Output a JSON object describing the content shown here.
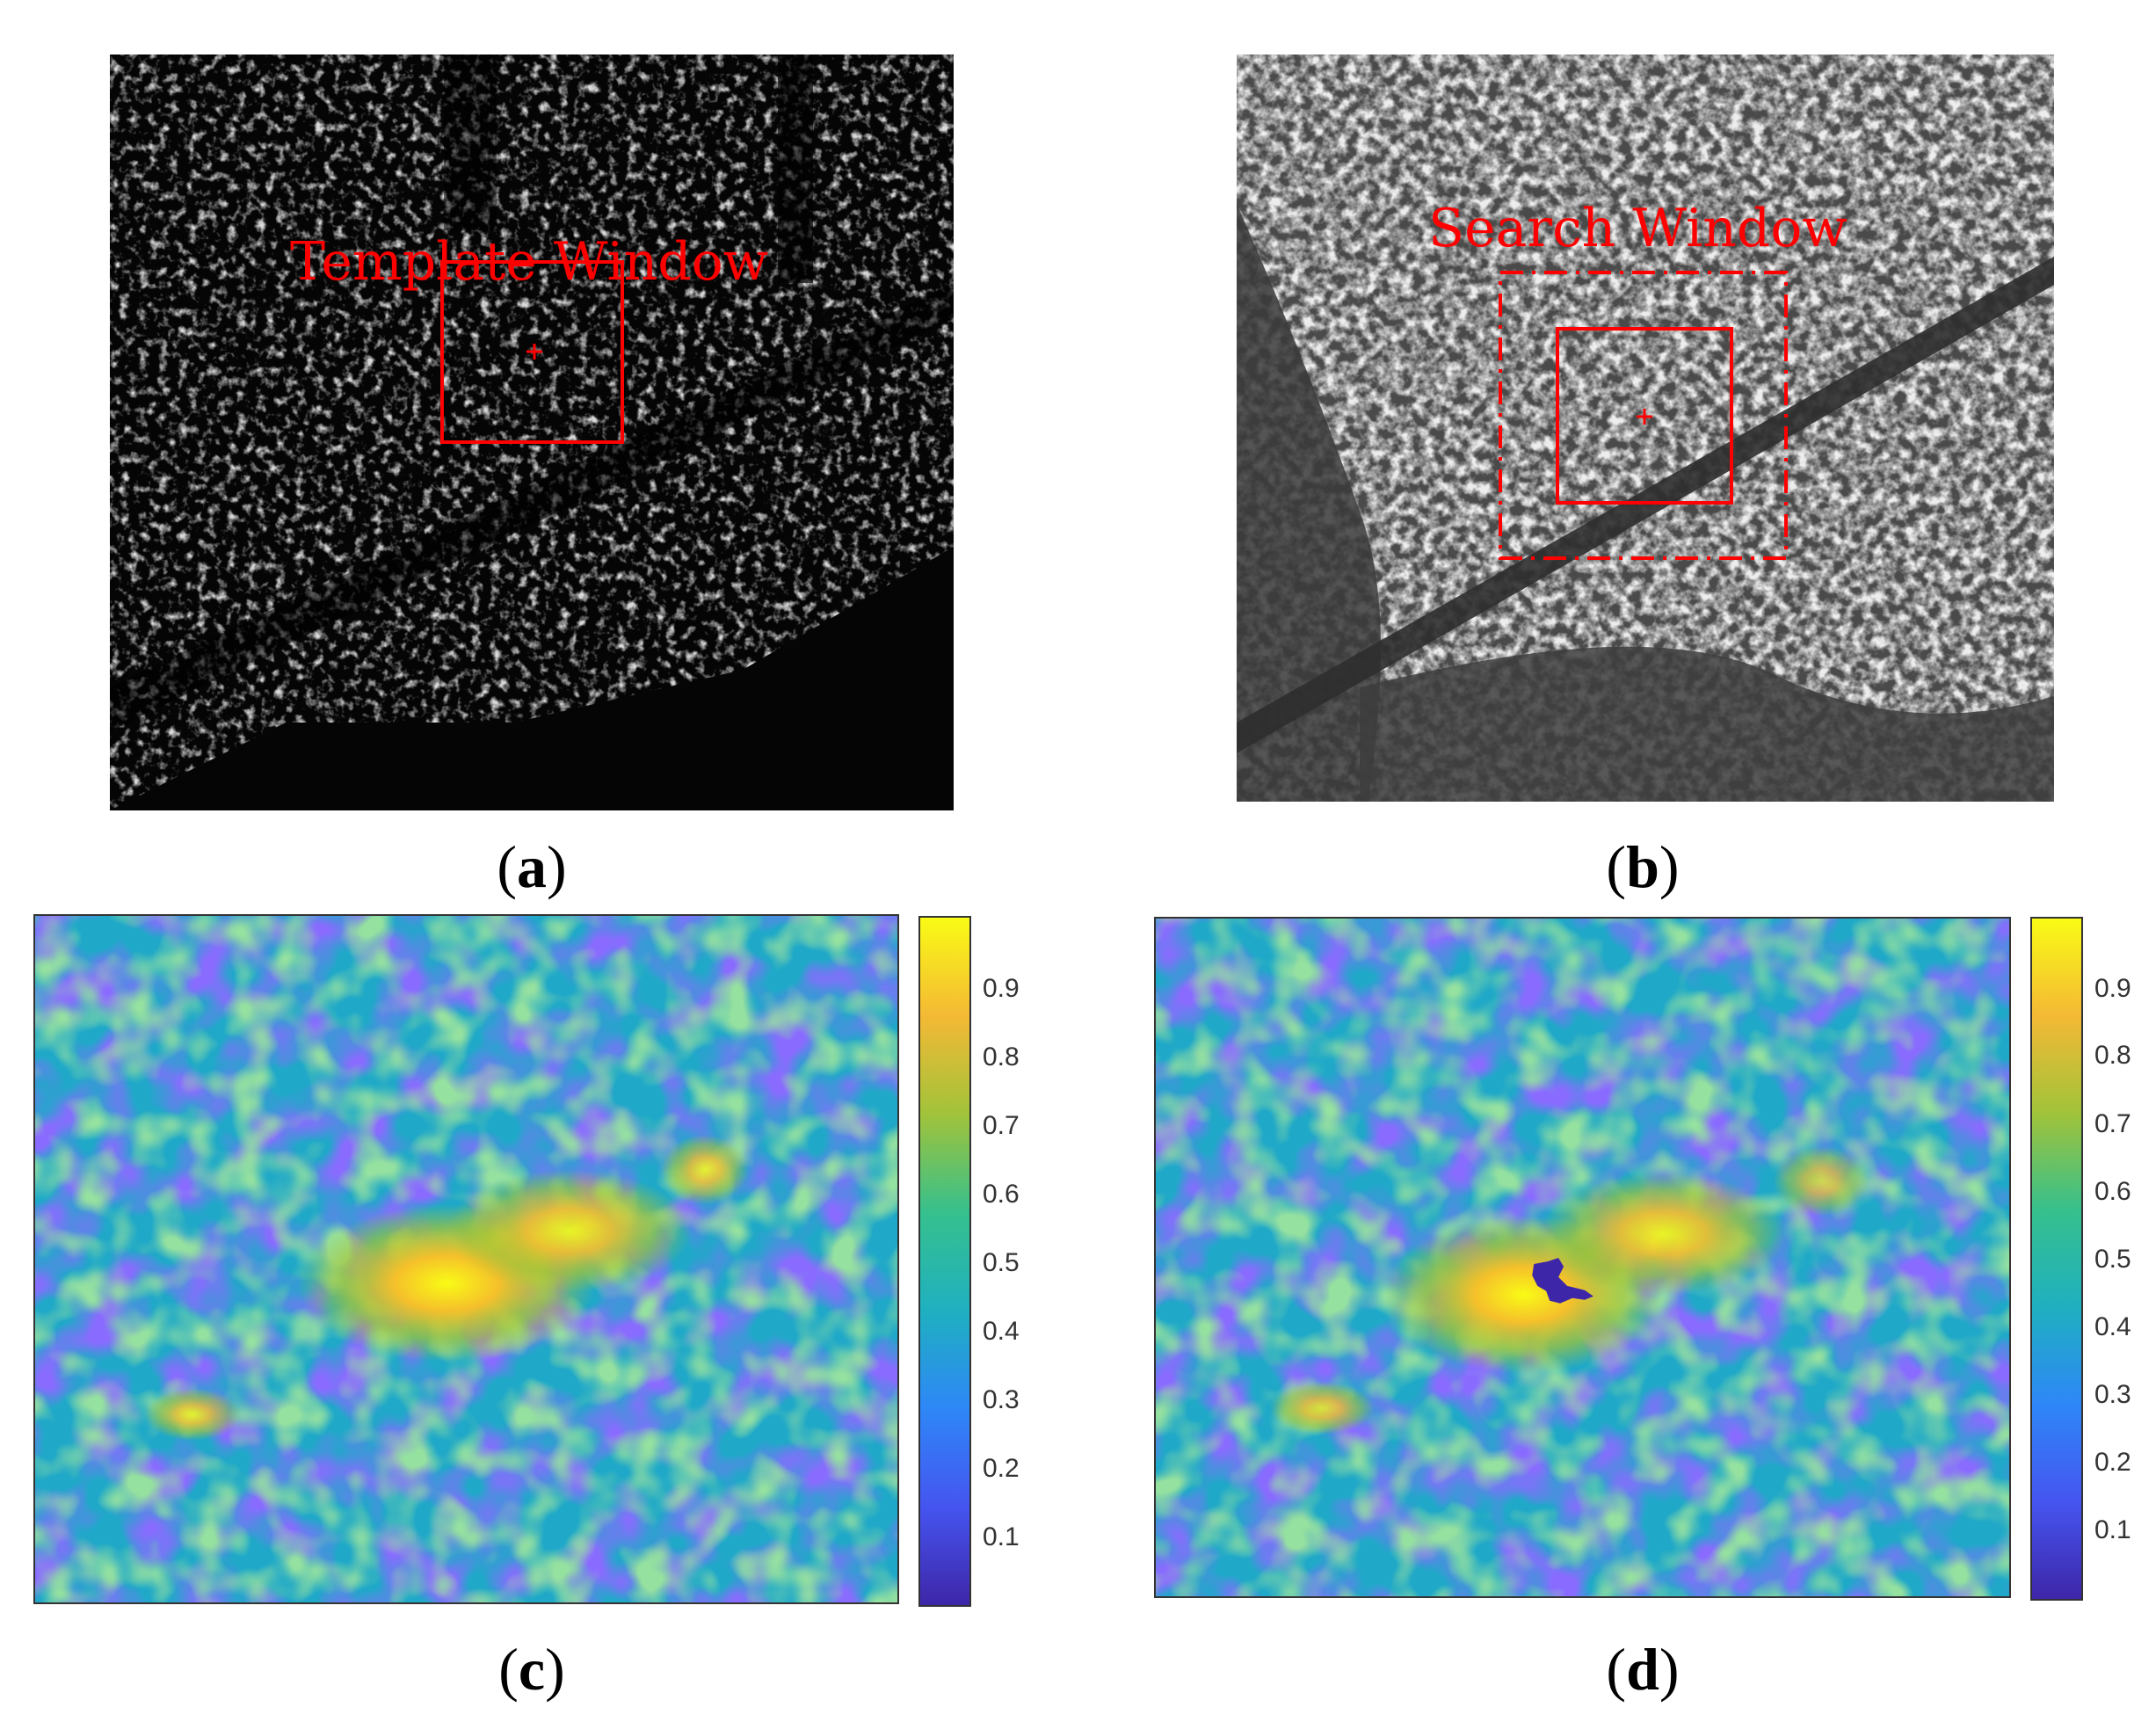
{
  "panels": {
    "a": {
      "caption_open": "(",
      "caption_letter": "a",
      "caption_close": ")",
      "overlay_label": "Template Window"
    },
    "b": {
      "caption_open": "(",
      "caption_letter": "b",
      "caption_close": ")",
      "overlay_label": "Search Window"
    },
    "c": {
      "caption_open": "(",
      "caption_letter": "c",
      "caption_close": ")",
      "colorbar_ticks": [
        "0.9",
        "0.8",
        "0.7",
        "0.6",
        "0.5",
        "0.4",
        "0.3",
        "0.2",
        "0.1"
      ]
    },
    "d": {
      "caption_open": "(",
      "caption_letter": "d",
      "caption_close": ")",
      "colorbar_ticks": [
        "0.9",
        "0.8",
        "0.7",
        "0.6",
        "0.5",
        "0.4",
        "0.3",
        "0.2",
        "0.1"
      ]
    }
  },
  "colors": {
    "annotation_red": "#ff0000",
    "parula_low": "#3e26a8",
    "parula_mid": "#1fb0c0",
    "parula_high": "#f9fb15"
  }
}
